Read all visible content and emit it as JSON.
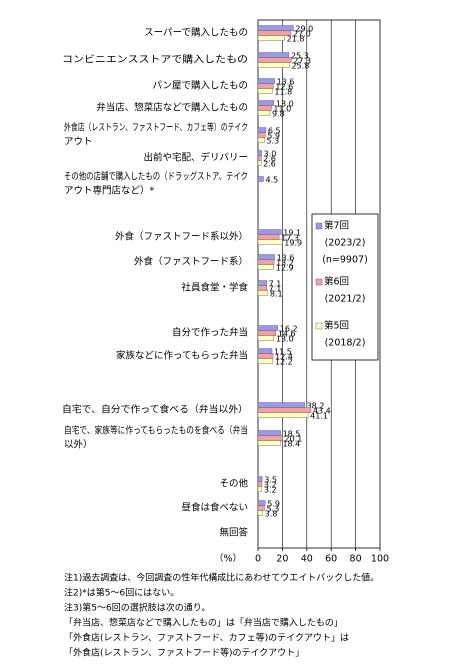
{
  "chart_data": {
    "type": "bar",
    "orientation": "horizontal",
    "categories": [
      "スーパーで購入したもの",
      "コンビニエンスストアで購入したもの",
      "パン屋で購入したもの",
      "弁当店、惣菜店などで購入したもの",
      [
        "外食店（レストラン、ファストフード、カフェ等）のテイク",
        "アウト"
      ],
      "出前や宅配、デリバリー",
      [
        "その他の店舗で購入したもの（ドラッグストア、テイク",
        "アウト専門店など）*"
      ],
      "外食（ファストフード系以外）",
      "外食（ファストフード系）",
      "社員食堂・学食",
      "自分で作った弁当",
      "家族などに作ってもらった弁当",
      "自宅で、自分で作って食べる（弁当以外）",
      [
        "自宅で、家族等に作ってもらったものを食べる（弁当",
        "以外）"
      ],
      "その他",
      "昼食は食べない",
      "無回答"
    ],
    "series": [
      {
        "name": "第7回",
        "period": "(2023/2)",
        "n": "(n=9907)",
        "color": "#9999ee",
        "values": [
          29.0,
          25.3,
          13.6,
          13.0,
          6.5,
          3.0,
          4.5,
          19.1,
          13.6,
          7.1,
          16.2,
          11.5,
          38.2,
          18.5,
          3.5,
          5.9,
          null
        ],
        "value_labels": [
          "29.0",
          "25.3",
          "13.6",
          "13.0",
          "6.5",
          "3.0",
          "4.5",
          "19.1",
          "13.6",
          "7.1",
          "16.2",
          "11.5",
          "38.2",
          "18.5",
          "3.5",
          "5.9",
          null
        ]
      },
      {
        "name": "第6回",
        "period": "(2021/2)",
        "color": "#f4a0a0",
        "values": [
          27.0,
          27.3,
          12.6,
          11.0,
          5.9,
          2.6,
          null,
          17.3,
          13.2,
          7.1,
          14.6,
          12.4,
          43.4,
          20.1,
          3.2,
          5.3,
          null
        ],
        "value_labels": [
          "27.0",
          "27.3",
          "12.6",
          "11.0",
          "5.9",
          "2.6",
          null,
          "17.3",
          "13.2",
          "7.1",
          "14.6",
          "12.4",
          "43.4",
          "20.1",
          "3.2",
          "5.3",
          null
        ]
      },
      {
        "name": "第5回",
        "period": "(2018/2)",
        "color": "#ffffc0",
        "values": [
          21.8,
          25.8,
          11.8,
          9.8,
          5.3,
          2.6,
          null,
          19.9,
          12.9,
          8.1,
          13.0,
          12.2,
          41.1,
          18.4,
          3.2,
          3.8,
          null
        ],
        "value_labels": [
          "21.8",
          "25.8",
          "11.8",
          "9.8",
          "5.3",
          "2.6",
          null,
          "19.9",
          "12.9",
          "8.1",
          "13.0",
          "12.2",
          "41.1",
          "18.4",
          "3.2",
          "3.8",
          null
        ]
      }
    ],
    "xlim": [
      0,
      100
    ],
    "xticks": [
      0,
      20,
      40,
      60,
      80,
      100
    ],
    "xlabel": "（%）",
    "grid": true,
    "notes": [
      "注1)過去調査は、今回調査の性年代構成比にあわせてウエイトバックした値。",
      "注2)*は第5～6回にはない。",
      "注3)第5～6回の選択肢は次の通り。",
      "「弁当店、惣菜店などで購入したもの」は「弁当店で購入したもの」",
      "「外食店(レストラン、ファストフード、カフェ等)のテイクアウト」は",
      "「外食店(レストラン、ファストフード等)のテイクアウト」"
    ]
  }
}
